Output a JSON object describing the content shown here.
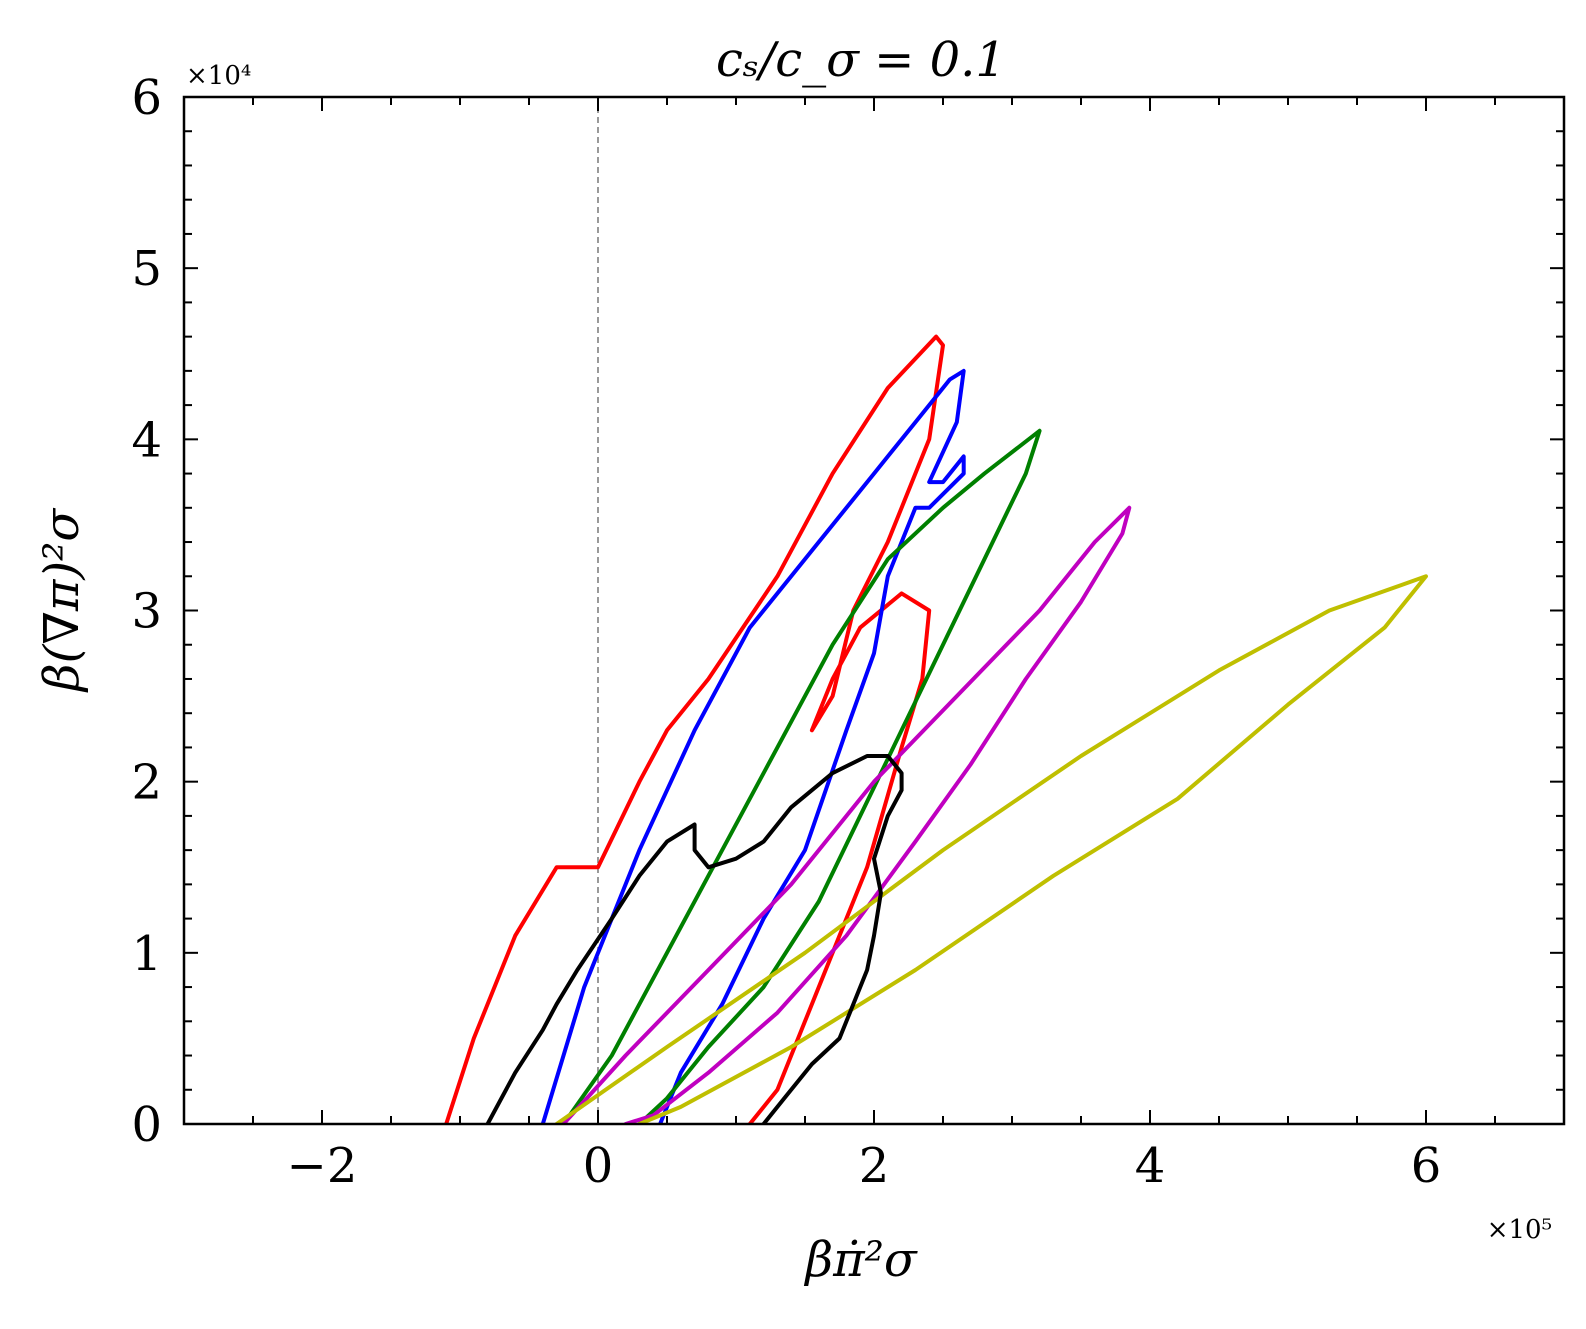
{
  "chart_data": {
    "type": "line",
    "title": "cₛ/c_σ = 0.1",
    "xlabel": "βπ̇²σ",
    "ylabel": "β(∇π)²σ",
    "x_multiplier": "×10⁵",
    "y_multiplier": "×10⁴",
    "xlim": [
      -3,
      7
    ],
    "ylim": [
      0,
      6
    ],
    "x_ticks": [
      -2,
      0,
      2,
      4,
      6
    ],
    "y_ticks": [
      0,
      1,
      2,
      3,
      4,
      5,
      6
    ],
    "x_tick_labels": [
      "−2",
      "0",
      "2",
      "4",
      "6"
    ],
    "y_tick_labels": [
      "0",
      "1",
      "2",
      "3",
      "4",
      "5",
      "6"
    ],
    "reference_line": {
      "x": 0,
      "style": "dashed",
      "color": "#808080"
    },
    "grid": false,
    "series": [
      {
        "name": "red contour",
        "color": "#ff0000",
        "points": [
          [
            -1.1,
            0
          ],
          [
            -0.9,
            0.5
          ],
          [
            -0.6,
            1.1
          ],
          [
            -0.3,
            1.5
          ],
          [
            0,
            1.5
          ],
          [
            0.3,
            2.0
          ],
          [
            0.5,
            2.3
          ],
          [
            0.8,
            2.6
          ],
          [
            1.3,
            3.2
          ],
          [
            1.7,
            3.8
          ],
          [
            2.1,
            4.3
          ],
          [
            2.45,
            4.6
          ],
          [
            2.5,
            4.55
          ],
          [
            2.4,
            4.0
          ],
          [
            2.1,
            3.4
          ],
          [
            1.85,
            3.0
          ],
          [
            1.7,
            2.5
          ],
          [
            1.55,
            2.3
          ],
          [
            1.7,
            2.6
          ],
          [
            1.9,
            2.9
          ],
          [
            2.2,
            3.1
          ],
          [
            2.4,
            3.0
          ],
          [
            2.35,
            2.6
          ],
          [
            2.2,
            2.2
          ],
          [
            1.95,
            1.5
          ],
          [
            1.7,
            1.0
          ],
          [
            1.5,
            0.6
          ],
          [
            1.3,
            0.2
          ],
          [
            1.1,
            0
          ]
        ]
      },
      {
        "name": "blue contour",
        "color": "#0000ff",
        "points": [
          [
            -0.4,
            0
          ],
          [
            -0.1,
            0.8
          ],
          [
            0.3,
            1.6
          ],
          [
            0.7,
            2.3
          ],
          [
            1.1,
            2.9
          ],
          [
            1.6,
            3.4
          ],
          [
            2.0,
            3.8
          ],
          [
            2.3,
            4.1
          ],
          [
            2.55,
            4.35
          ],
          [
            2.65,
            4.4
          ],
          [
            2.6,
            4.1
          ],
          [
            2.4,
            3.75
          ],
          [
            2.5,
            3.75
          ],
          [
            2.65,
            3.9
          ],
          [
            2.65,
            3.8
          ],
          [
            2.4,
            3.6
          ],
          [
            2.3,
            3.6
          ],
          [
            2.1,
            3.2
          ],
          [
            2.0,
            2.75
          ],
          [
            1.8,
            2.3
          ],
          [
            1.5,
            1.6
          ],
          [
            1.2,
            1.2
          ],
          [
            0.9,
            0.7
          ],
          [
            0.6,
            0.3
          ],
          [
            0.45,
            0
          ]
        ]
      },
      {
        "name": "green contour",
        "color": "#008000",
        "points": [
          [
            -0.25,
            0
          ],
          [
            0.1,
            0.4
          ],
          [
            0.5,
            1.0
          ],
          [
            0.9,
            1.6
          ],
          [
            1.3,
            2.2
          ],
          [
            1.7,
            2.8
          ],
          [
            2.1,
            3.3
          ],
          [
            2.5,
            3.6
          ],
          [
            2.8,
            3.8
          ],
          [
            3.2,
            4.05
          ],
          [
            3.1,
            3.8
          ],
          [
            2.8,
            3.3
          ],
          [
            2.5,
            2.8
          ],
          [
            2.2,
            2.3
          ],
          [
            1.9,
            1.8
          ],
          [
            1.6,
            1.3
          ],
          [
            1.2,
            0.8
          ],
          [
            0.8,
            0.45
          ],
          [
            0.5,
            0.15
          ],
          [
            0.3,
            0
          ]
        ]
      },
      {
        "name": "magenta contour",
        "color": "#c000c0",
        "points": [
          [
            -0.25,
            0
          ],
          [
            0.2,
            0.4
          ],
          [
            0.8,
            0.9
          ],
          [
            1.4,
            1.4
          ],
          [
            2.0,
            2.0
          ],
          [
            2.6,
            2.5
          ],
          [
            3.2,
            3.0
          ],
          [
            3.6,
            3.4
          ],
          [
            3.85,
            3.6
          ],
          [
            3.8,
            3.45
          ],
          [
            3.5,
            3.05
          ],
          [
            3.1,
            2.6
          ],
          [
            2.7,
            2.1
          ],
          [
            2.3,
            1.65
          ],
          [
            1.8,
            1.1
          ],
          [
            1.3,
            0.65
          ],
          [
            0.8,
            0.3
          ],
          [
            0.4,
            0.05
          ],
          [
            0.2,
            0
          ]
        ]
      },
      {
        "name": "yellow contour",
        "color": "#bfbf00",
        "points": [
          [
            -0.3,
            0
          ],
          [
            0.5,
            0.45
          ],
          [
            1.5,
            1.0
          ],
          [
            2.5,
            1.6
          ],
          [
            3.5,
            2.15
          ],
          [
            4.5,
            2.65
          ],
          [
            5.3,
            3.0
          ],
          [
            6.0,
            3.2
          ],
          [
            5.7,
            2.9
          ],
          [
            5.0,
            2.45
          ],
          [
            4.2,
            1.9
          ],
          [
            3.3,
            1.45
          ],
          [
            2.3,
            0.9
          ],
          [
            1.4,
            0.45
          ],
          [
            0.6,
            0.1
          ],
          [
            0.3,
            0
          ]
        ]
      },
      {
        "name": "black contour",
        "color": "#000000",
        "points": [
          [
            -0.8,
            0
          ],
          [
            -0.6,
            0.3
          ],
          [
            -0.4,
            0.55
          ],
          [
            -0.3,
            0.7
          ],
          [
            -0.15,
            0.9
          ],
          [
            0.1,
            1.2
          ],
          [
            0.3,
            1.45
          ],
          [
            0.5,
            1.65
          ],
          [
            0.7,
            1.75
          ],
          [
            0.7,
            1.6
          ],
          [
            0.8,
            1.5
          ],
          [
            1.0,
            1.55
          ],
          [
            1.2,
            1.65
          ],
          [
            1.4,
            1.85
          ],
          [
            1.7,
            2.05
          ],
          [
            1.95,
            2.15
          ],
          [
            2.1,
            2.15
          ],
          [
            2.2,
            2.05
          ],
          [
            2.2,
            1.95
          ],
          [
            2.1,
            1.8
          ],
          [
            2.0,
            1.55
          ],
          [
            2.05,
            1.35
          ],
          [
            2.0,
            1.1
          ],
          [
            1.95,
            0.9
          ],
          [
            1.85,
            0.7
          ],
          [
            1.75,
            0.5
          ],
          [
            1.55,
            0.35
          ],
          [
            1.35,
            0.15
          ],
          [
            1.2,
            0
          ]
        ]
      }
    ]
  }
}
